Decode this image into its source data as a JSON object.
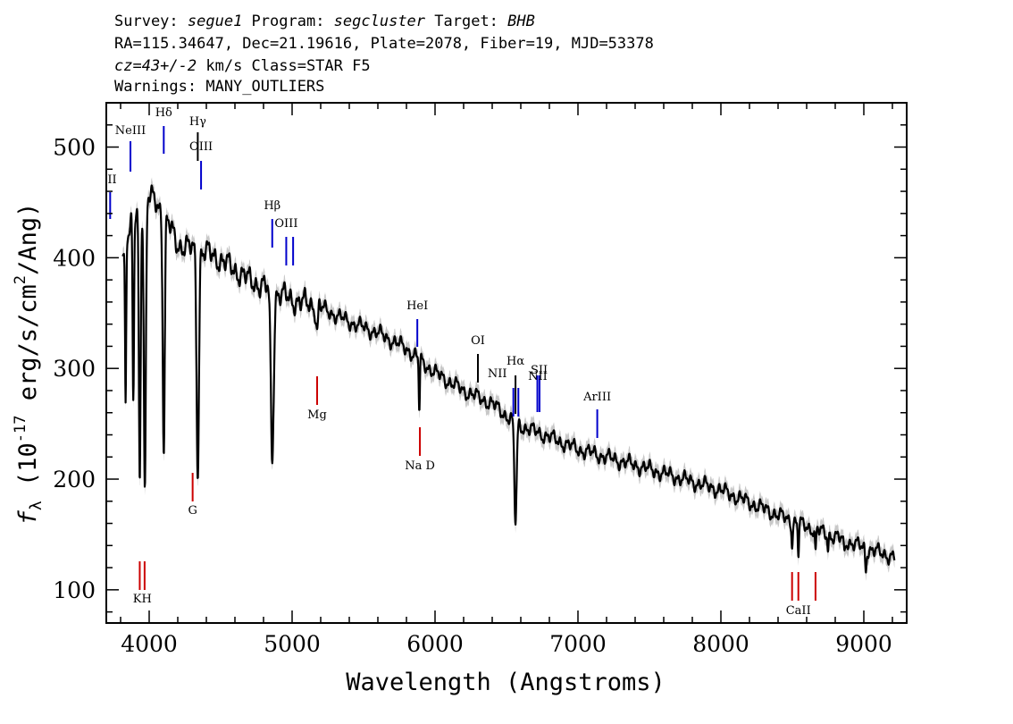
{
  "header": {
    "line1_prefix": "Survey: ",
    "survey": "segue1",
    "line1_mid1": " Program: ",
    "program": "segcluster",
    "line1_mid2": " Target: ",
    "target": "BHB",
    "line2": "RA=115.34647, Dec=21.19616, Plate=2078, Fiber=19, MJD=53378",
    "line3_cz": "cz=43+/-2",
    "line3_rest": " km/s Class=STAR F5",
    "line4": "Warnings: MANY_OUTLIERS"
  },
  "chart_data": {
    "type": "line",
    "xlabel": "Wavelength (Angstroms)",
    "ylabel": "fλ (10^-17 erg/s/cm²/Ang)",
    "xlim": [
      3700,
      9300
    ],
    "ylim": [
      70,
      540
    ],
    "x_ticks": [
      4000,
      5000,
      6000,
      7000,
      8000,
      9000
    ],
    "x_tick_labels": [
      "4000",
      "5000",
      "6000",
      "7000",
      "8000",
      "9000"
    ],
    "y_ticks": [
      100,
      200,
      300,
      400,
      500
    ],
    "y_tick_labels": [
      "100",
      "200",
      "300",
      "400",
      "500"
    ],
    "grid": false,
    "series": [
      {
        "color": "#000000",
        "continuum": [
          [
            3800,
            400
          ],
          [
            3850,
            420
          ],
          [
            3900,
            440
          ],
          [
            4000,
            455
          ],
          [
            4050,
            450
          ],
          [
            4100,
            440
          ],
          [
            4200,
            412
          ],
          [
            4300,
            408
          ],
          [
            4400,
            405
          ],
          [
            4500,
            398
          ],
          [
            4700,
            380
          ],
          [
            4900,
            368
          ],
          [
            5000,
            362
          ],
          [
            5200,
            355
          ],
          [
            5400,
            342
          ],
          [
            5600,
            332
          ],
          [
            5800,
            318
          ],
          [
            6000,
            296
          ],
          [
            6200,
            280
          ],
          [
            6400,
            268
          ],
          [
            6550,
            252
          ],
          [
            6600,
            248
          ],
          [
            6800,
            238
          ],
          [
            7000,
            227
          ],
          [
            7500,
            209
          ],
          [
            8000,
            190
          ],
          [
            8500,
            162
          ],
          [
            9000,
            138
          ],
          [
            9200,
            130
          ]
        ],
        "absorption_lines": [
          {
            "center": 3835,
            "depth": 150,
            "width": 4
          },
          {
            "center": 3889,
            "depth": 170,
            "width": 5
          },
          {
            "center": 3934,
            "depth": 250,
            "width": 6
          },
          {
            "center": 3970,
            "depth": 260,
            "width": 7
          },
          {
            "center": 4102,
            "depth": 210,
            "width": 7
          },
          {
            "center": 4340,
            "depth": 200,
            "width": 8
          },
          {
            "center": 4861,
            "depth": 150,
            "width": 10
          },
          {
            "center": 5175,
            "depth": 22,
            "width": 6
          },
          {
            "center": 5890,
            "depth": 45,
            "width": 4
          },
          {
            "center": 6563,
            "depth": 90,
            "width": 8
          },
          {
            "center": 8498,
            "depth": 20,
            "width": 4
          },
          {
            "center": 8542,
            "depth": 28,
            "width": 4
          },
          {
            "center": 8662,
            "depth": 22,
            "width": 4
          },
          {
            "center": 8750,
            "depth": 12,
            "width": 4
          },
          {
            "center": 8863,
            "depth": 12,
            "width": 4
          },
          {
            "center": 9014,
            "depth": 18,
            "width": 5
          },
          {
            "center": 9229,
            "depth": 12,
            "width": 5
          }
        ]
      }
    ],
    "emission_line_markers": [
      {
        "label": "II",
        "x": 3727,
        "color": "#0000cc"
      },
      {
        "label": "NeIII",
        "x": 3869,
        "color": "#0000cc"
      },
      {
        "label": "Hδ",
        "x": 4102,
        "color": "#0000cc"
      },
      {
        "label": "Hγ",
        "x": 4340,
        "color": "#000000"
      },
      {
        "label": "OIII",
        "x": 4363,
        "color": "#0000cc"
      },
      {
        "label": "Hβ",
        "x": 4861,
        "color": "#0000cc"
      },
      {
        "label": "OIII",
        "x": 4959,
        "color": "#0000cc"
      },
      {
        "label": "",
        "x": 5007,
        "color": "#0000cc"
      },
      {
        "label": "HeI",
        "x": 5876,
        "color": "#0000cc"
      },
      {
        "label": "OI",
        "x": 6300,
        "color": "#000000"
      },
      {
        "label": "NII",
        "x": 6548,
        "color": "#0000cc"
      },
      {
        "label": "Hα",
        "x": 6563,
        "color": "#000000"
      },
      {
        "label": "",
        "x": 6583,
        "color": "#0000cc"
      },
      {
        "label": "SII",
        "x": 6716,
        "color": "#0000cc"
      },
      {
        "label": "NII",
        "x": 6731,
        "color": "#0000cc"
      },
      {
        "label": "ArIII",
        "x": 7135,
        "color": "#0000cc"
      }
    ],
    "absorption_line_markers": [
      {
        "label": "KH",
        "x": 3952,
        "color": "#cc0000"
      },
      {
        "label": "G",
        "x": 4304,
        "color": "#cc0000"
      },
      {
        "label": "Mg",
        "x": 5175,
        "color": "#cc0000"
      },
      {
        "label": "Na D",
        "x": 5894,
        "color": "#cc0000"
      },
      {
        "label": "CaII",
        "x": 8542,
        "color": "#cc0000"
      }
    ]
  }
}
